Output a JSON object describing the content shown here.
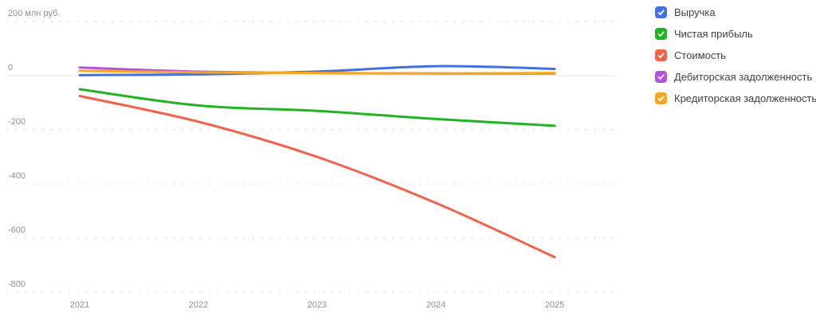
{
  "chart_data": {
    "type": "line",
    "title": "",
    "unit": "млн руб.",
    "x": [
      "2021",
      "2022",
      "2023",
      "2024",
      "2025"
    ],
    "series": [
      {
        "key": "revenue",
        "name": "Выручка",
        "color": "#4170e2",
        "checked": true,
        "values": [
          2,
          5,
          15,
          35,
          25
        ]
      },
      {
        "key": "net-profit",
        "name": "Чистая прибыль",
        "color": "#22b322",
        "checked": true,
        "values": [
          -50,
          -110,
          -130,
          -160,
          -185
        ]
      },
      {
        "key": "cost",
        "name": "Стоимость",
        "color": "#f4614a",
        "checked": true,
        "values": [
          -75,
          -170,
          -300,
          -470,
          -670
        ]
      },
      {
        "key": "receivables",
        "name": "Дебиторская задолженность",
        "color": "#b750e0",
        "checked": true,
        "values": [
          30,
          15,
          10,
          8,
          8
        ]
      },
      {
        "key": "payables",
        "name": "Кредиторская задолженность",
        "color": "#f6a71f",
        "checked": true,
        "values": [
          18,
          12,
          10,
          8,
          10
        ]
      }
    ],
    "y_ticks": [
      {
        "value": 200,
        "label": "200 млн руб."
      },
      {
        "value": 0,
        "label": "0"
      },
      {
        "value": -200,
        "label": "-200"
      },
      {
        "value": -400,
        "label": "-400"
      },
      {
        "value": -600,
        "label": "-600"
      },
      {
        "value": -800,
        "label": "-800"
      }
    ],
    "ylim": [
      -800,
      200
    ],
    "grid": "dashed-horizontal",
    "legend_position": "right",
    "checkmark_color": "#ffffff"
  }
}
